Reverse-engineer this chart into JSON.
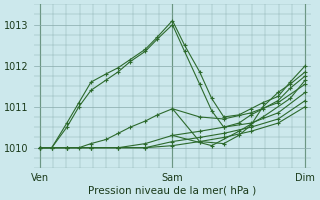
{
  "title": "Pression niveau de la mer( hPa )",
  "bg_color": "#cce8ec",
  "grid_color": "#99bbbb",
  "line_color": "#2d6a2d",
  "ylim": [
    1009.5,
    1013.5
  ],
  "yticks": [
    1010,
    1011,
    1012,
    1013
  ],
  "xtick_labels": [
    "Ven",
    "Sam",
    "Dim"
  ],
  "xtick_positions": [
    0.0,
    0.44,
    0.88
  ],
  "figsize": [
    3.2,
    2.0
  ],
  "dpi": 100,
  "series": [
    {
      "x": [
        0.0,
        0.04,
        0.09,
        0.13,
        0.17,
        0.22,
        0.26,
        0.3,
        0.35,
        0.39,
        0.44,
        0.48,
        0.53,
        0.57,
        0.61,
        0.66,
        0.7,
        0.74,
        0.79,
        0.83,
        0.88
      ],
      "y": [
        1010.0,
        1010.0,
        1010.6,
        1011.1,
        1011.6,
        1011.8,
        1011.95,
        1012.15,
        1012.4,
        1012.7,
        1013.1,
        1012.5,
        1011.85,
        1011.2,
        1010.75,
        1010.8,
        1010.95,
        1011.1,
        1011.25,
        1011.6,
        1012.0
      ]
    },
    {
      "x": [
        0.0,
        0.04,
        0.09,
        0.13,
        0.17,
        0.22,
        0.26,
        0.3,
        0.35,
        0.39,
        0.44,
        0.48,
        0.53,
        0.57,
        0.61,
        0.66,
        0.7,
        0.74,
        0.79,
        0.83,
        0.88
      ],
      "y": [
        1010.0,
        1010.0,
        1010.5,
        1011.0,
        1011.4,
        1011.65,
        1011.85,
        1012.1,
        1012.35,
        1012.65,
        1013.0,
        1012.35,
        1011.55,
        1010.9,
        1010.5,
        1010.6,
        1010.8,
        1010.95,
        1011.15,
        1011.45,
        1011.75
      ]
    },
    {
      "x": [
        0.0,
        0.04,
        0.09,
        0.13,
        0.17,
        0.22,
        0.26,
        0.3,
        0.35,
        0.39,
        0.44,
        0.53,
        0.61,
        0.7,
        0.79,
        0.88
      ],
      "y": [
        1010.0,
        1010.0,
        1010.0,
        1010.0,
        1010.1,
        1010.2,
        1010.35,
        1010.5,
        1010.65,
        1010.8,
        1010.95,
        1010.75,
        1010.7,
        1010.85,
        1011.1,
        1011.55
      ]
    },
    {
      "x": [
        0.0,
        0.09,
        0.17,
        0.26,
        0.35,
        0.44,
        0.53,
        0.61,
        0.7,
        0.79,
        0.88
      ],
      "y": [
        1010.0,
        1010.0,
        1010.0,
        1010.0,
        1010.1,
        1010.3,
        1010.4,
        1010.5,
        1010.6,
        1010.85,
        1011.35
      ]
    },
    {
      "x": [
        0.0,
        0.09,
        0.17,
        0.26,
        0.35,
        0.44,
        0.53,
        0.61,
        0.7,
        0.79,
        0.88
      ],
      "y": [
        1010.0,
        1010.0,
        1010.0,
        1010.0,
        1010.0,
        1010.15,
        1010.25,
        1010.35,
        1010.5,
        1010.7,
        1011.15
      ]
    },
    {
      "x": [
        0.0,
        0.09,
        0.17,
        0.26,
        0.35,
        0.44,
        0.53,
        0.61,
        0.7,
        0.79,
        0.88
      ],
      "y": [
        1010.0,
        1010.0,
        1010.0,
        1010.0,
        1010.0,
        1010.05,
        1010.15,
        1010.25,
        1010.4,
        1010.6,
        1011.0
      ]
    },
    {
      "x": [
        0.44,
        0.53,
        0.61,
        0.66,
        0.7,
        0.74,
        0.79,
        0.83,
        0.88
      ],
      "y": [
        1010.95,
        1010.15,
        1010.1,
        1010.3,
        1010.55,
        1011.0,
        1011.35,
        1011.55,
        1011.85
      ]
    },
    {
      "x": [
        0.44,
        0.57,
        0.66,
        0.74,
        0.83,
        0.88
      ],
      "y": [
        1010.3,
        1010.05,
        1010.4,
        1010.75,
        1011.2,
        1011.65
      ]
    }
  ]
}
